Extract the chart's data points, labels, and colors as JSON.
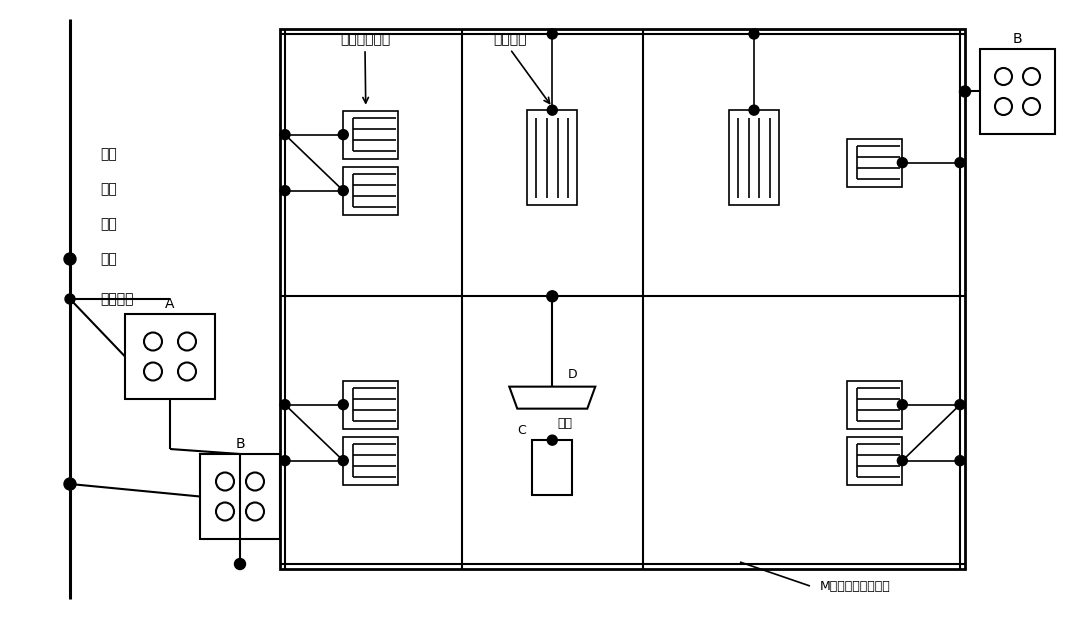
{
  "bg_color": "#ffffff",
  "line_color": "#000000",
  "labels": {
    "dianqi": "电气\n竖井\n接地\n干线",
    "benceng": "本层竖井",
    "label_A": "A",
    "label_B_left": "B",
    "label_B_right": "B",
    "label_C": "C",
    "label_D": "D",
    "shebei_jifang": "设备机房示意",
    "dangtai_shebei": "单台设备",
    "xiecao": "线槽",
    "mtype": "M型等电位连接网络"
  }
}
